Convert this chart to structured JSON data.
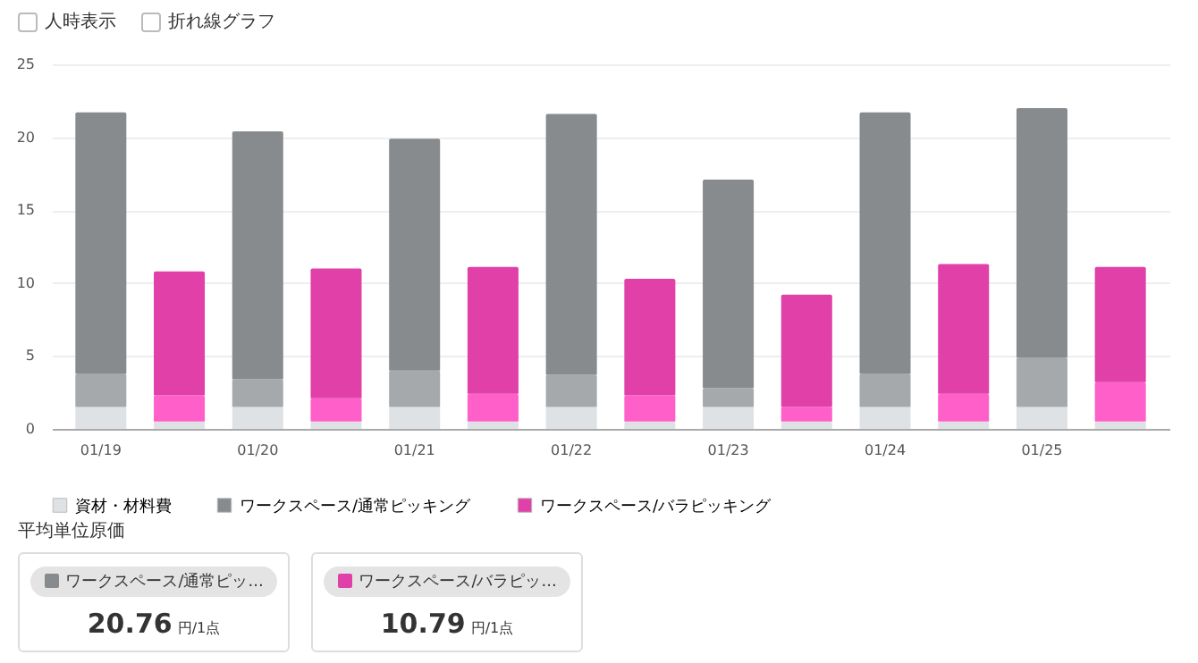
{
  "chart_data": [
    {
      "type": "bar",
      "stacked": true,
      "categories": [
        "01/19",
        null,
        "01/20",
        null,
        "01/21",
        null,
        "01/22",
        null,
        "01/23",
        null,
        "01/24",
        null,
        "01/25",
        null
      ],
      "series": [
        {
          "name": "資材・材料費",
          "color": "#dfe2e5",
          "values": [
            1.5,
            null,
            1.5,
            null,
            1.5,
            null,
            1.5,
            null,
            1.5,
            null,
            1.5,
            null,
            1.5,
            null
          ]
        },
        {
          "color": "#a5a9ab",
          "values": [
            2.3,
            null,
            1.9,
            null,
            2.5,
            null,
            2.2,
            null,
            1.3,
            null,
            2.3,
            null,
            3.4,
            null
          ]
        },
        {
          "name": "ワークスペース/通常ピッキング",
          "color": "#878b8d",
          "values": [
            17.9,
            null,
            17.0,
            null,
            15.9,
            null,
            17.9,
            null,
            14.3,
            null,
            17.9,
            null,
            17.1,
            null
          ]
        },
        {
          "color": "#dfe2e5",
          "values": [
            null,
            0.5,
            null,
            0.5,
            null,
            0.5,
            null,
            0.5,
            null,
            0.5,
            null,
            0.5,
            null,
            0.5
          ]
        },
        {
          "color": "#ff5fc8",
          "values": [
            null,
            1.8,
            null,
            1.6,
            null,
            1.9,
            null,
            1.8,
            null,
            1.0,
            null,
            1.9,
            null,
            2.7
          ]
        },
        {
          "name": "ワークスペース/バラピッキング",
          "color": "#e040a8",
          "values": [
            null,
            8.5,
            null,
            8.9,
            null,
            8.7,
            null,
            8.0,
            null,
            7.7,
            null,
            8.9,
            null,
            7.9
          ]
        }
      ],
      "ylim": [
        0,
        25
      ],
      "yticks": [
        0,
        5,
        10,
        15,
        20,
        25
      ],
      "grid": "y",
      "legend": "bottom",
      "annotations": [
        "人時表示",
        "折れ線グラフ"
      ]
    },
    {
      "type": "other",
      "title": "平均単位原価",
      "colors": [
        "#878b8d",
        "#e040a8"
      ],
      "annotations": [
        "ワークスペース/通常ピッ...",
        "20.76",
        "円/1点",
        "ワークスペース/バラピッ...",
        "10.79",
        "円/1点"
      ]
    }
  ]
}
